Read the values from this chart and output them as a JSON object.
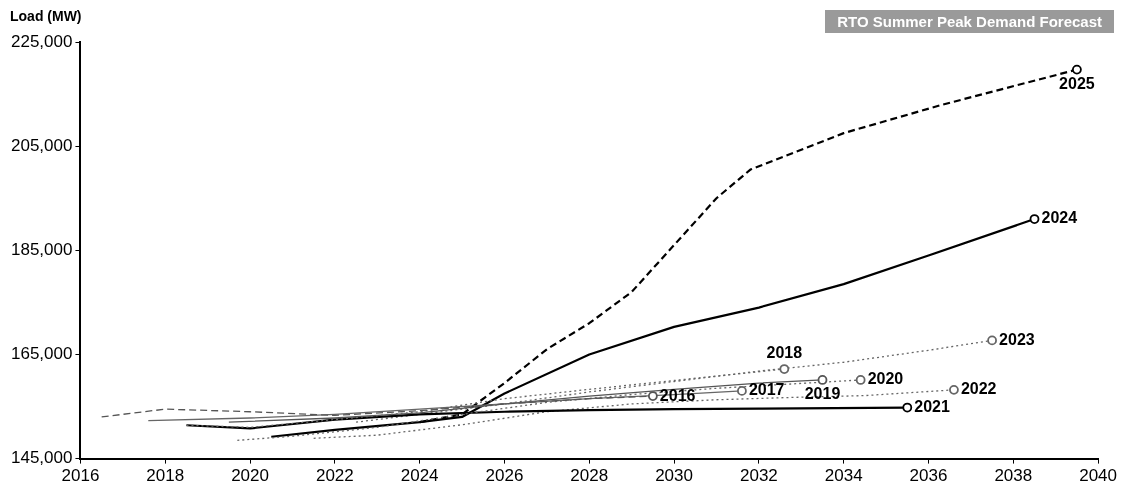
{
  "chart_data": {
    "type": "line",
    "title": "RTO Summer Peak Demand Forecast",
    "ylabel": "Load (MW)",
    "xlim": [
      2016,
      2040
    ],
    "xticks": [
      2016,
      2018,
      2020,
      2022,
      2024,
      2026,
      2028,
      2030,
      2032,
      2034,
      2036,
      2038,
      2040
    ],
    "ylim": [
      145000,
      225000
    ],
    "yticks": [
      {
        "value": 145000,
        "label": "145,000"
      },
      {
        "value": 165000,
        "label": "165,000"
      },
      {
        "value": 185000,
        "label": "185,000"
      },
      {
        "value": 205000,
        "label": "205,000"
      },
      {
        "value": 225000,
        "label": "225,000"
      }
    ],
    "grid": false,
    "legend": false,
    "series": [
      {
        "name": "2016",
        "color": "#555555",
        "line_style": "dashed",
        "x": [
          2016.5,
          2018,
          2020,
          2022,
          2024,
          2026,
          2028,
          2029.5
        ],
        "values": [
          153000,
          154500,
          154000,
          153300,
          154200,
          155500,
          156500,
          157000
        ]
      },
      {
        "name": "2017",
        "color": "#666666",
        "line_style": "solid",
        "x": [
          2017.6,
          2020,
          2022,
          2024,
          2026,
          2028,
          2030,
          2031.6
        ],
        "values": [
          152300,
          152800,
          153500,
          154500,
          155500,
          156500,
          157300,
          158000
        ]
      },
      {
        "name": "2018",
        "color": "#666666",
        "line_style": "dotted",
        "x": [
          2018.5,
          2020,
          2022,
          2024,
          2026,
          2028,
          2030,
          2032.6
        ],
        "values": [
          151400,
          151000,
          152500,
          154000,
          156500,
          158300,
          160000,
          162200
        ]
      },
      {
        "name": "2019",
        "color": "#555555",
        "line_style": "solid",
        "x": [
          2019.5,
          2022,
          2024,
          2026,
          2028,
          2030,
          2032,
          2033.5
        ],
        "values": [
          152000,
          152800,
          153800,
          155500,
          157000,
          158300,
          159500,
          160100
        ]
      },
      {
        "name": "2020",
        "color": "#666666",
        "line_style": "dotted",
        "x": [
          2019.7,
          2021,
          2023,
          2025,
          2027,
          2029,
          2031,
          2034.4
        ],
        "values": [
          148500,
          149300,
          151000,
          153500,
          155800,
          157300,
          158500,
          160100
        ]
      },
      {
        "name": "2021",
        "color": "#000000",
        "line_style": "solid",
        "x": [
          2018.5,
          2020,
          2022,
          2024,
          2026,
          2028,
          2030,
          2032,
          2035.5
        ],
        "values": [
          151400,
          150800,
          152500,
          153500,
          154000,
          154300,
          154500,
          154600,
          154800
        ]
      },
      {
        "name": "2022",
        "color": "#666666",
        "line_style": "dotted",
        "x": [
          2021.5,
          2023,
          2025,
          2027,
          2029,
          2031,
          2033,
          2034.5,
          2036.6
        ],
        "values": [
          148900,
          149500,
          151500,
          154000,
          155500,
          156300,
          156800,
          157100,
          158200
        ]
      },
      {
        "name": "2023",
        "color": "#666666",
        "line_style": "dotted",
        "x": [
          2022.5,
          2024,
          2026,
          2028,
          2030,
          2032,
          2034,
          2036,
          2037.5
        ],
        "values": [
          152000,
          153500,
          155500,
          157800,
          159800,
          161800,
          163500,
          165800,
          167700
        ]
      },
      {
        "name": "2024",
        "color": "#000000",
        "line_style": "solid",
        "x": [
          2020.5,
          2022,
          2024,
          2025,
          2026,
          2028,
          2030,
          2032,
          2034,
          2036,
          2038.5
        ],
        "values": [
          149200,
          150500,
          152000,
          153000,
          157500,
          165000,
          170300,
          174000,
          178500,
          184000,
          191000
        ]
      },
      {
        "name": "2025",
        "color": "#000000",
        "line_style": "dashed",
        "x": [
          2024,
          2025,
          2026,
          2027,
          2028,
          2029,
          2030,
          2031,
          2031.8,
          2034,
          2036.3,
          2039.5
        ],
        "values": [
          152000,
          153500,
          159500,
          166000,
          171000,
          177000,
          186000,
          195000,
          200500,
          207500,
          212900,
          219700
        ]
      }
    ]
  }
}
